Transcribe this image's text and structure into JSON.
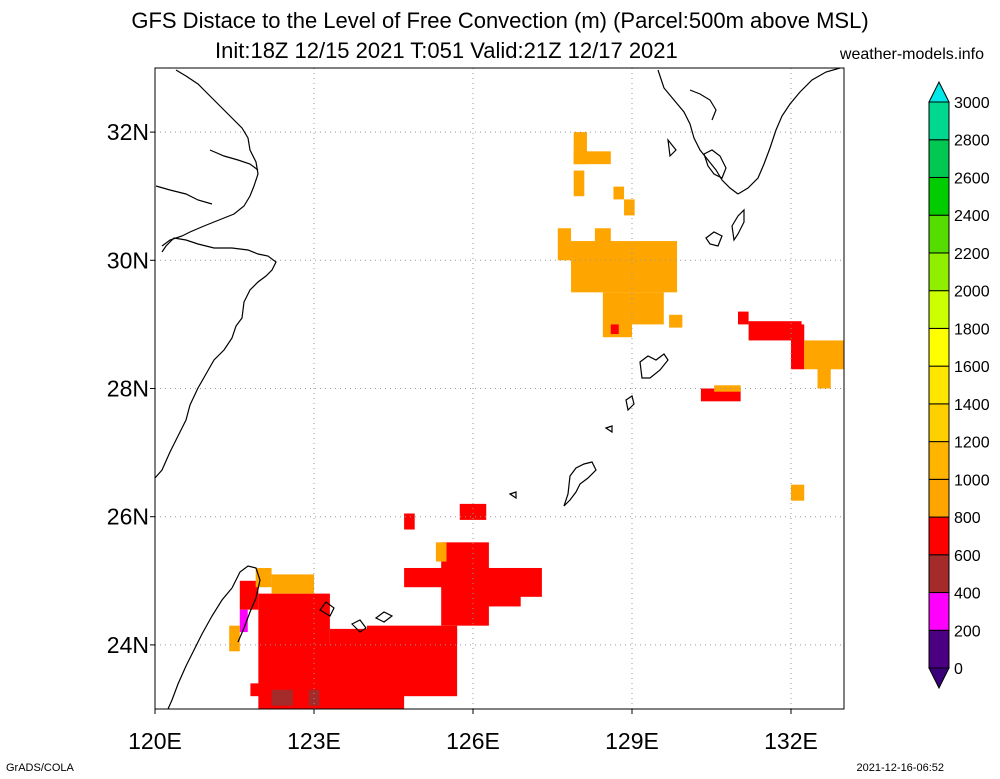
{
  "title": {
    "line1": "GFS Distace to the Level of Free Convection (m) (Parcel:500m above MSL)",
    "line2": "Init:18Z 12/15 2021 T:051 Valid:21Z 12/17 2021"
  },
  "site": "weather-models.info",
  "footer": {
    "left": "GrADS/COLA",
    "right": "2021-12-16-06:52"
  },
  "map": {
    "lon_range": [
      120,
      133
    ],
    "lat_range": [
      23,
      33
    ],
    "lon_ticks": [
      {
        "value": 120,
        "label": "120E"
      },
      {
        "value": 123,
        "label": "123E"
      },
      {
        "value": 126,
        "label": "126E"
      },
      {
        "value": 129,
        "label": "129E"
      },
      {
        "value": 132,
        "label": "132E"
      }
    ],
    "lat_ticks": [
      {
        "value": 24,
        "label": "24N"
      },
      {
        "value": 26,
        "label": "26N"
      },
      {
        "value": 28,
        "label": "28N"
      },
      {
        "value": 30,
        "label": "30N"
      },
      {
        "value": 32,
        "label": "32N"
      }
    ],
    "coast_color": "#000000",
    "grid_color": "#999999"
  },
  "colorbar": {
    "levels": [
      {
        "label": "0",
        "color": "#4b0082"
      },
      {
        "label": "200",
        "color": "#ff00ff"
      },
      {
        "label": "400",
        "color": "#a52a2a"
      },
      {
        "label": "600",
        "color": "#ff0000"
      },
      {
        "label": "800",
        "color": "#ffa500"
      },
      {
        "label": "1000",
        "color": "#ffb400"
      },
      {
        "label": "1200",
        "color": "#ffd000"
      },
      {
        "label": "1400",
        "color": "#ffe600"
      },
      {
        "label": "1600",
        "color": "#ffff00"
      },
      {
        "label": "1800",
        "color": "#ccff00"
      },
      {
        "label": "2000",
        "color": "#90ee00"
      },
      {
        "label": "2200",
        "color": "#55dd00"
      },
      {
        "label": "2400",
        "color": "#00cc00"
      },
      {
        "label": "2600",
        "color": "#00c850"
      },
      {
        "label": "2800",
        "color": "#00d890"
      },
      {
        "label": "3000",
        "color": "#00e8c8"
      }
    ],
    "top_color": "#00e8e8",
    "bottom_color": "#3a007a"
  },
  "fields": {
    "red": "#ff0000",
    "orange": "#ffa500",
    "brown": "#a52a2a",
    "magenta": "#ff00ff",
    "cells": [
      {
        "lon": [
          121.95,
          123.3
        ],
        "lat": [
          23.0,
          24.8
        ],
        "c": "red"
      },
      {
        "lon": [
          122.4,
          124.7
        ],
        "lat": [
          23.0,
          24.0
        ],
        "c": "red"
      },
      {
        "lon": [
          123.3,
          125.7
        ],
        "lat": [
          23.2,
          24.25
        ],
        "c": "red"
      },
      {
        "lon": [
          124.0,
          125.7
        ],
        "lat": [
          24.0,
          24.3
        ],
        "c": "red"
      },
      {
        "lon": [
          121.6,
          121.95
        ],
        "lat": [
          24.55,
          25.0
        ],
        "c": "red"
      },
      {
        "lon": [
          121.6,
          121.75
        ],
        "lat": [
          24.2,
          24.55
        ],
        "c": "magenta"
      },
      {
        "lon": [
          121.9,
          122.2
        ],
        "lat": [
          24.9,
          25.2
        ],
        "c": "orange"
      },
      {
        "lon": [
          122.2,
          123.0
        ],
        "lat": [
          24.8,
          25.1
        ],
        "c": "orange"
      },
      {
        "lon": [
          121.4,
          121.6
        ],
        "lat": [
          23.9,
          24.3
        ],
        "c": "orange"
      },
      {
        "lon": [
          122.2,
          122.6
        ],
        "lat": [
          23.05,
          23.3
        ],
        "c": "brown"
      },
      {
        "lon": [
          122.9,
          123.1
        ],
        "lat": [
          23.05,
          23.3
        ],
        "c": "brown"
      },
      {
        "lon": [
          121.8,
          122.1
        ],
        "lat": [
          23.2,
          23.4
        ],
        "c": "red"
      },
      {
        "lon": [
          124.7,
          125.9
        ],
        "lat": [
          24.9,
          25.2
        ],
        "c": "red"
      },
      {
        "lon": [
          125.4,
          126.3
        ],
        "lat": [
          24.3,
          25.6
        ],
        "c": "red"
      },
      {
        "lon": [
          125.9,
          126.9
        ],
        "lat": [
          24.6,
          25.2
        ],
        "c": "red"
      },
      {
        "lon": [
          126.6,
          127.3
        ],
        "lat": [
          24.75,
          25.2
        ],
        "c": "red"
      },
      {
        "lon": [
          125.3,
          125.5
        ],
        "lat": [
          25.3,
          25.6
        ],
        "c": "orange"
      },
      {
        "lon": [
          124.7,
          124.9
        ],
        "lat": [
          25.8,
          26.05
        ],
        "c": "red"
      },
      {
        "lon": [
          125.75,
          126.25
        ],
        "lat": [
          25.95,
          26.2
        ],
        "c": "red"
      },
      {
        "lon": [
          127.9,
          128.15
        ],
        "lat": [
          31.5,
          32.0
        ],
        "c": "orange"
      },
      {
        "lon": [
          127.9,
          128.6
        ],
        "lat": [
          31.5,
          31.7
        ],
        "c": "orange"
      },
      {
        "lon": [
          127.9,
          128.1
        ],
        "lat": [
          31.0,
          31.4
        ],
        "c": "orange"
      },
      {
        "lon": [
          128.65,
          128.85
        ],
        "lat": [
          30.95,
          31.15
        ],
        "c": "orange"
      },
      {
        "lon": [
          128.85,
          129.05
        ],
        "lat": [
          30.7,
          30.95
        ],
        "c": "orange"
      },
      {
        "lon": [
          127.6,
          127.85
        ],
        "lat": [
          30.0,
          30.5
        ],
        "c": "orange"
      },
      {
        "lon": [
          128.3,
          128.6
        ],
        "lat": [
          30.0,
          30.5
        ],
        "c": "orange"
      },
      {
        "lon": [
          127.85,
          129.85
        ],
        "lat": [
          29.5,
          30.3
        ],
        "c": "orange"
      },
      {
        "lon": [
          128.45,
          129.0
        ],
        "lat": [
          28.8,
          29.5
        ],
        "c": "orange"
      },
      {
        "lon": [
          129.0,
          129.6
        ],
        "lat": [
          29.0,
          29.5
        ],
        "c": "orange"
      },
      {
        "lon": [
          129.7,
          129.95
        ],
        "lat": [
          28.95,
          29.15
        ],
        "c": "orange"
      },
      {
        "lon": [
          128.65,
          128.9
        ],
        "lat": [
          29.8,
          30.2
        ],
        "c": "orange"
      },
      {
        "lon": [
          128.6,
          128.75
        ],
        "lat": [
          28.85,
          29.0
        ],
        "c": "red"
      },
      {
        "lon": [
          131.0,
          131.2
        ],
        "lat": [
          29.0,
          29.2
        ],
        "c": "red"
      },
      {
        "lon": [
          131.2,
          132.2
        ],
        "lat": [
          28.75,
          29.05
        ],
        "c": "red"
      },
      {
        "lon": [
          132.0,
          132.25
        ],
        "lat": [
          28.3,
          29.0
        ],
        "c": "red"
      },
      {
        "lon": [
          132.25,
          133.0
        ],
        "lat": [
          28.3,
          28.75
        ],
        "c": "orange"
      },
      {
        "lon": [
          132.5,
          132.75
        ],
        "lat": [
          28.0,
          28.35
        ],
        "c": "orange"
      },
      {
        "lon": [
          130.3,
          131.05
        ],
        "lat": [
          27.8,
          28.0
        ],
        "c": "red"
      },
      {
        "lon": [
          130.55,
          131.05
        ],
        "lat": [
          27.95,
          28.05
        ],
        "c": "orange"
      },
      {
        "lon": [
          132.0,
          132.25
        ],
        "lat": [
          26.25,
          26.5
        ],
        "c": "orange"
      }
    ]
  }
}
